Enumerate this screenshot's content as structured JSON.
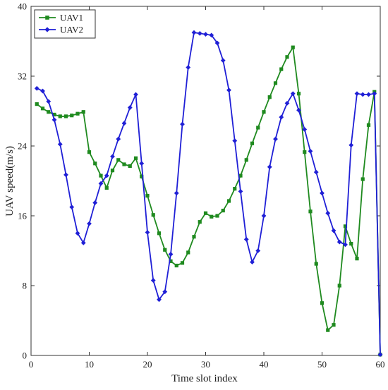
{
  "chart_data": {
    "type": "line",
    "title": "",
    "xlabel": "Time slot index",
    "ylabel": "UAV speed(m/s)",
    "xlim": [
      0,
      60
    ],
    "ylim": [
      0,
      40
    ],
    "xticks": [
      0,
      10,
      20,
      30,
      40,
      50,
      60
    ],
    "yticks": [
      0,
      8,
      16,
      24,
      32,
      40
    ],
    "grid": false,
    "legend_position": "top-left",
    "series": [
      {
        "name": "UAV1",
        "color": "#1f8a1f",
        "marker": "square",
        "x": [
          1,
          2,
          3,
          4,
          5,
          6,
          7,
          8,
          9,
          10,
          11,
          12,
          13,
          14,
          15,
          16,
          17,
          18,
          19,
          20,
          21,
          22,
          23,
          24,
          25,
          26,
          27,
          28,
          29,
          30,
          31,
          32,
          33,
          34,
          35,
          36,
          37,
          38,
          39,
          40,
          41,
          42,
          43,
          44,
          45,
          46,
          47,
          48,
          49,
          50,
          51,
          52,
          53,
          54,
          55,
          56,
          57,
          58,
          59,
          60
        ],
        "y": [
          28.8,
          28.3,
          27.9,
          27.6,
          27.4,
          27.4,
          27.5,
          27.7,
          27.9,
          23.3,
          22.0,
          20.6,
          19.2,
          21.2,
          22.4,
          21.9,
          21.7,
          22.6,
          20.5,
          18.3,
          16.1,
          14.0,
          12.1,
          10.8,
          10.3,
          10.6,
          11.8,
          13.6,
          15.3,
          16.3,
          15.9,
          16.0,
          16.6,
          17.7,
          19.1,
          20.6,
          22.4,
          24.3,
          26.1,
          27.9,
          29.6,
          31.2,
          32.8,
          34.2,
          35.3,
          30.0,
          23.3,
          16.5,
          10.5,
          6.0,
          2.9,
          3.5,
          8.0,
          14.8,
          12.8,
          11.1,
          20.2,
          26.4,
          30.2,
          0.1
        ]
      },
      {
        "name": "UAV2",
        "color": "#1f1fd6",
        "marker": "diamond",
        "x": [
          1,
          2,
          3,
          4,
          5,
          6,
          7,
          8,
          9,
          10,
          11,
          12,
          13,
          14,
          15,
          16,
          17,
          18,
          19,
          20,
          21,
          22,
          23,
          24,
          25,
          26,
          27,
          28,
          29,
          30,
          31,
          32,
          33,
          34,
          35,
          36,
          37,
          38,
          39,
          40,
          41,
          42,
          43,
          44,
          45,
          46,
          47,
          48,
          49,
          50,
          51,
          52,
          53,
          54,
          55,
          56,
          57,
          58,
          59,
          60
        ],
        "y": [
          30.6,
          30.3,
          29.1,
          27.0,
          24.2,
          20.7,
          17.0,
          14.0,
          12.9,
          15.1,
          17.5,
          19.7,
          20.6,
          22.8,
          24.8,
          26.6,
          28.4,
          29.9,
          22.0,
          14.1,
          8.6,
          6.4,
          7.3,
          11.6,
          18.6,
          26.5,
          33.0,
          37.0,
          36.9,
          36.8,
          36.7,
          35.8,
          33.8,
          30.4,
          24.6,
          18.8,
          13.3,
          10.7,
          12.0,
          16.0,
          21.6,
          24.8,
          27.3,
          28.9,
          30.0,
          28.1,
          25.9,
          23.4,
          21.0,
          18.6,
          16.3,
          14.3,
          13.0,
          12.7,
          24.1,
          30.0,
          29.9,
          29.9,
          30.0,
          0.1
        ]
      }
    ]
  }
}
